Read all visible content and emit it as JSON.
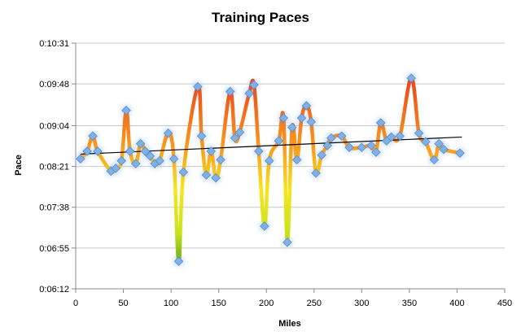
{
  "chart_data": {
    "type": "line",
    "title": "Training Paces",
    "xlabel": "Miles",
    "ylabel": "Pace",
    "xlim": [
      0,
      450
    ],
    "x_ticks": [
      0,
      50,
      100,
      150,
      200,
      250,
      300,
      350,
      400,
      450
    ],
    "x_tick_labels": [
      "0",
      "50",
      "100",
      "150",
      "200",
      "250",
      "300",
      "350",
      "400",
      "450"
    ],
    "ylim_seconds": [
      372,
      631
    ],
    "y_ticks_seconds": [
      372,
      415,
      458,
      501,
      544,
      588,
      631
    ],
    "y_tick_labels": [
      "0:06:12",
      "0:06:55",
      "0:07:38",
      "0:08:21",
      "0:09:04",
      "0:09:48",
      "0:10:31"
    ],
    "grid": "horizontal",
    "legend": "none",
    "trendline": {
      "type": "linear",
      "start": [
        5,
        514
      ],
      "end": [
        405,
        532
      ]
    },
    "series": [
      {
        "values_unit": "seconds",
        "x": [
          5,
          12,
          18,
          23,
          37,
          42,
          48,
          53,
          57,
          63,
          68,
          73,
          78,
          83,
          88,
          97,
          103,
          108,
          113,
          128,
          132,
          137,
          142,
          147,
          152,
          162,
          167,
          172,
          182,
          187,
          192,
          198,
          203,
          213,
          218,
          222,
          227,
          232,
          237,
          242,
          247,
          252,
          258,
          264,
          268,
          279,
          287,
          300,
          310,
          315,
          320,
          326,
          331,
          340,
          352,
          360,
          367,
          376,
          381,
          386,
          403
        ],
        "y": [
          509,
          517,
          533,
          517,
          496,
          499,
          507,
          560,
          517,
          504,
          525,
          517,
          512,
          504,
          507,
          536,
          509,
          401,
          495,
          585,
          533,
          492,
          517,
          489,
          508,
          580,
          531,
          537,
          578,
          587,
          517,
          438,
          507,
          528,
          552,
          421,
          542,
          508,
          552,
          565,
          548,
          494,
          513,
          523,
          531,
          533,
          521,
          521,
          523,
          516,
          547,
          528,
          532,
          533,
          594,
          536,
          527,
          508,
          525,
          519,
          515
        ]
      }
    ],
    "colors": {
      "line_low": "#2b8c1a",
      "line_mid": "#f5e61e",
      "line_high": "#e8321e",
      "marker_fill": "#7fb0e6",
      "marker_stroke": "#5a8ccc",
      "trendline": "#000000",
      "gridline": "#c8c8c8"
    }
  }
}
